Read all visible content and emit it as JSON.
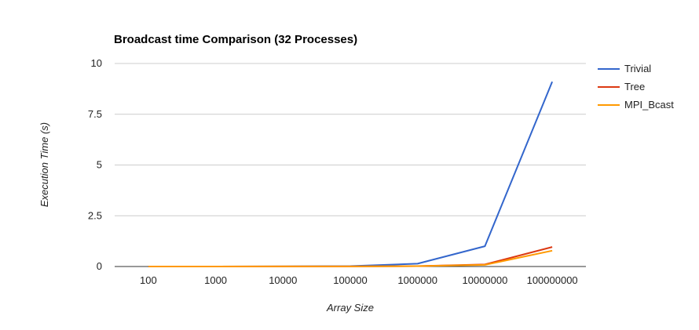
{
  "chart_data": {
    "type": "line",
    "title": "Broadcast time Comparison (32 Processes)",
    "xlabel": "Array Size",
    "ylabel": "Execution Time (s)",
    "categories": [
      "100",
      "1000",
      "10000",
      "100000",
      "1000000",
      "10000000",
      "100000000"
    ],
    "y_ticks": [
      "0",
      "2.5",
      "5",
      "7.5",
      "10"
    ],
    "ylim": [
      0,
      10
    ],
    "grid": true,
    "legend_position": "right",
    "series": [
      {
        "name": "Trivial",
        "color": "#3366cc",
        "values": [
          0.0,
          0.0,
          0.005,
          0.02,
          0.14,
          1.0,
          9.1
        ]
      },
      {
        "name": "Tree",
        "color": "#dc3912",
        "values": [
          0.0,
          0.0,
          0.002,
          0.005,
          0.02,
          0.1,
          0.96
        ]
      },
      {
        "name": "MPI_Bcast",
        "color": "#ff9900",
        "values": [
          0.0,
          0.0,
          0.002,
          0.005,
          0.02,
          0.08,
          0.78
        ]
      }
    ]
  }
}
